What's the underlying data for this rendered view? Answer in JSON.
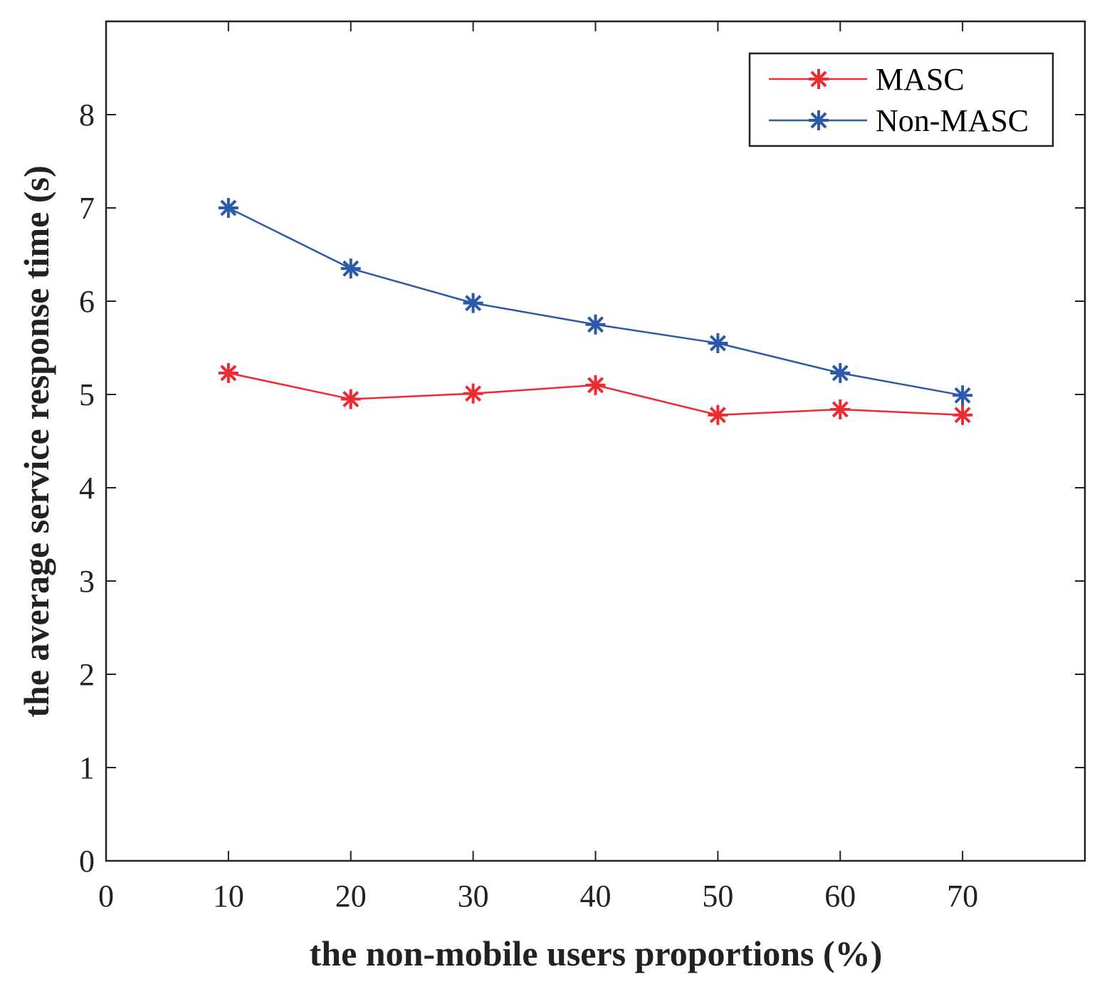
{
  "chart_data": {
    "type": "line",
    "title": "",
    "xlabel": "the non-mobile users proportions (%)",
    "ylabel": "the average service response time (s)",
    "xlim": [
      0,
      80
    ],
    "ylim": [
      0,
      9
    ],
    "xticks": [
      0,
      10,
      20,
      30,
      40,
      50,
      60,
      70
    ],
    "yticks": [
      0,
      1,
      2,
      3,
      4,
      5,
      6,
      7,
      8
    ],
    "grid": false,
    "legend_position": "top-right",
    "x": [
      10,
      20,
      30,
      40,
      50,
      60,
      70
    ],
    "series": [
      {
        "name": "MASC",
        "color": "#ee2a32",
        "marker": "asterisk",
        "values": [
          5.23,
          4.95,
          5.01,
          5.1,
          4.78,
          4.84,
          4.78
        ]
      },
      {
        "name": "Non-MASC",
        "color": "#2a5aa8",
        "marker": "asterisk",
        "values": [
          7.0,
          6.35,
          5.98,
          5.75,
          5.55,
          5.23,
          4.99
        ]
      }
    ]
  }
}
